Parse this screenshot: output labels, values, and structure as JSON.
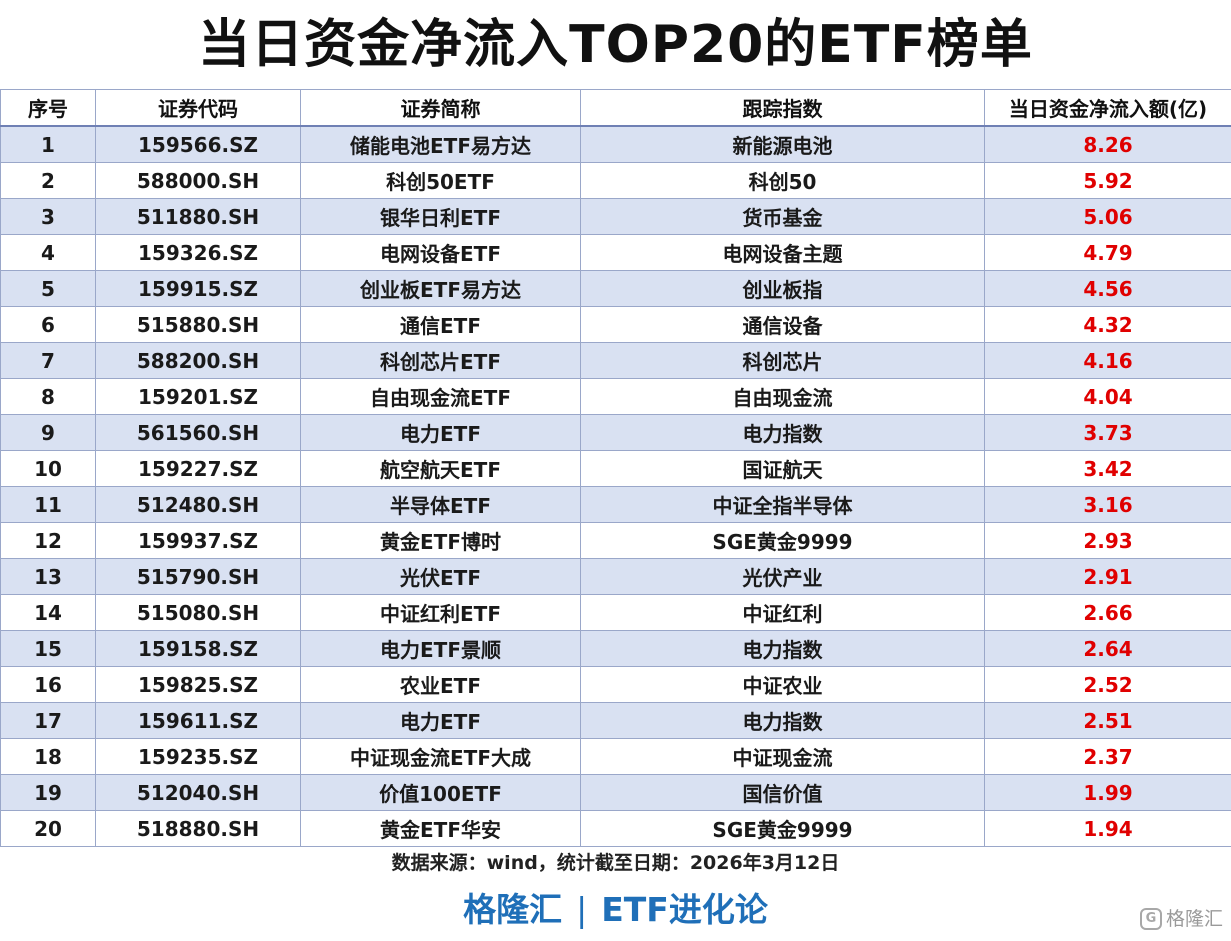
{
  "title": "当日资金净流入TOP20的ETF榜单",
  "table": {
    "headers": [
      "序号",
      "证券代码",
      "证券简称",
      "跟踪指数",
      "当日资金净流入额(亿)"
    ],
    "rows": [
      [
        "1",
        "159566.SZ",
        "储能电池ETF易方达",
        "新能源电池",
        "8.26"
      ],
      [
        "2",
        "588000.SH",
        "科创50ETF",
        "科创50",
        "5.92"
      ],
      [
        "3",
        "511880.SH",
        "银华日利ETF",
        "货币基金",
        "5.06"
      ],
      [
        "4",
        "159326.SZ",
        "电网设备ETF",
        "电网设备主题",
        "4.79"
      ],
      [
        "5",
        "159915.SZ",
        "创业板ETF易方达",
        "创业板指",
        "4.56"
      ],
      [
        "6",
        "515880.SH",
        "通信ETF",
        "通信设备",
        "4.32"
      ],
      [
        "7",
        "588200.SH",
        "科创芯片ETF",
        "科创芯片",
        "4.16"
      ],
      [
        "8",
        "159201.SZ",
        "自由现金流ETF",
        "自由现金流",
        "4.04"
      ],
      [
        "9",
        "561560.SH",
        "电力ETF",
        "电力指数",
        "3.73"
      ],
      [
        "10",
        "159227.SZ",
        "航空航天ETF",
        "国证航天",
        "3.42"
      ],
      [
        "11",
        "512480.SH",
        "半导体ETF",
        "中证全指半导体",
        "3.16"
      ],
      [
        "12",
        "159937.SZ",
        "黄金ETF博时",
        "SGE黄金9999",
        "2.93"
      ],
      [
        "13",
        "515790.SH",
        "光伏ETF",
        "光伏产业",
        "2.91"
      ],
      [
        "14",
        "515080.SH",
        "中证红利ETF",
        "中证红利",
        "2.66"
      ],
      [
        "15",
        "159158.SZ",
        "电力ETF景顺",
        "电力指数",
        "2.64"
      ],
      [
        "16",
        "159825.SZ",
        "农业ETF",
        "中证农业",
        "2.52"
      ],
      [
        "17",
        "159611.SZ",
        "电力ETF",
        "电力指数",
        "2.51"
      ],
      [
        "18",
        "159235.SZ",
        "中证现金流ETF大成",
        "中证现金流",
        "2.37"
      ],
      [
        "19",
        "512040.SH",
        "价值100ETF",
        "国信价值",
        "1.99"
      ],
      [
        "20",
        "518880.SH",
        "黄金ETF华安",
        "SGE黄金9999",
        "1.94"
      ]
    ]
  },
  "source_note": "数据来源：wind，统计截至日期：2026年3月12日",
  "brand": {
    "left": "格隆汇",
    "separator": "|",
    "right": "ETF进化论"
  },
  "watermark": {
    "logo_glyph": "G",
    "text": "格隆汇"
  },
  "colors": {
    "header_border": "#6f80b4",
    "row_band": "#d9e1f2",
    "amount_red": "#e00000",
    "brand_blue": "#1f6fb8"
  }
}
